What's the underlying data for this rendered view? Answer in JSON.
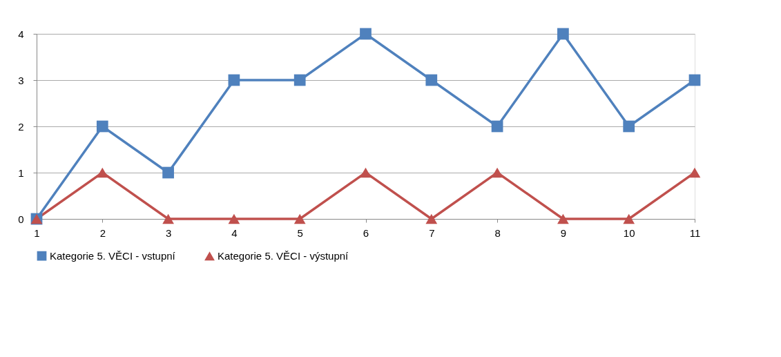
{
  "chart_data": {
    "type": "line",
    "x": [
      1,
      2,
      3,
      4,
      5,
      6,
      7,
      8,
      9,
      10,
      11
    ],
    "xlim": [
      1,
      11
    ],
    "xticks": [
      1,
      2,
      3,
      4,
      5,
      6,
      7,
      8,
      9,
      10,
      11
    ],
    "ylim": [
      0,
      4
    ],
    "yticks": [
      0,
      1,
      2,
      3,
      4
    ],
    "grid": "y",
    "legend": "bottom",
    "line_style": "solid",
    "series": [
      {
        "name": "Kategorie 5. VĚCI - vstupní",
        "color": "#4f81bd",
        "marker": "square",
        "values": [
          0,
          2,
          1,
          3,
          3,
          4,
          3,
          2,
          4,
          2,
          3
        ]
      },
      {
        "name": "Kategorie 5. VĚCI - výstupní",
        "color": "#c0504d",
        "marker": "triangle",
        "values": [
          0,
          1,
          0,
          0,
          0,
          1,
          0,
          1,
          0,
          0,
          1
        ]
      }
    ]
  }
}
